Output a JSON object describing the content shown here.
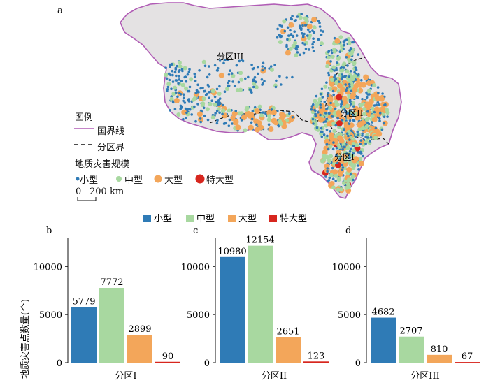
{
  "panel_letters": {
    "a": "a",
    "b": "b",
    "c": "c",
    "d": "d"
  },
  "map": {
    "zone_labels": {
      "zone3": "分区III",
      "zone2": "分区II",
      "zone1": "分区I"
    },
    "legend": {
      "title": "图例",
      "boundary": "国界线",
      "zone_boundary": "分区界",
      "scale_title": "地质灾害规模",
      "sizes": [
        "小型",
        "中型",
        "大型",
        "特大型"
      ],
      "scalebar_0": "0",
      "scalebar_label": "200 km"
    },
    "colors": {
      "small": "#2f7bb6",
      "medium": "#a8d8a0",
      "large": "#f3a65a",
      "xlarge": "#d7261e",
      "border": "#b05cb5",
      "land": "#e4e2e3"
    }
  },
  "chart_legend": [
    "小型",
    "中型",
    "大型",
    "特大型"
  ],
  "chart_data": [
    {
      "type": "bar",
      "panel": "b",
      "categories": [
        "小型",
        "中型",
        "大型",
        "特大型"
      ],
      "values": [
        5779,
        7772,
        2899,
        90
      ],
      "xlabel": "分区I",
      "ylabel": "地质灾害点数量(个)",
      "yticks": [
        "0",
        "5000",
        "10000"
      ],
      "ylim": [
        0,
        13000
      ],
      "colors": [
        "#2f7bb6",
        "#a8d8a0",
        "#f3a65a",
        "#d7261e"
      ]
    },
    {
      "type": "bar",
      "panel": "c",
      "categories": [
        "小型",
        "中型",
        "大型",
        "特大型"
      ],
      "values": [
        10980,
        12154,
        2651,
        123
      ],
      "xlabel": "分区II",
      "ylabel": "",
      "yticks": [
        "0",
        "5000",
        "10000"
      ],
      "ylim": [
        0,
        13000
      ],
      "colors": [
        "#2f7bb6",
        "#a8d8a0",
        "#f3a65a",
        "#d7261e"
      ]
    },
    {
      "type": "bar",
      "panel": "d",
      "categories": [
        "小型",
        "中型",
        "大型",
        "特大型"
      ],
      "values": [
        4682,
        2707,
        810,
        67
      ],
      "xlabel": "分区III",
      "ylabel": "",
      "yticks": [
        "0",
        "5000",
        "10000"
      ],
      "ylim": [
        0,
        13000
      ],
      "colors": [
        "#2f7bb6",
        "#a8d8a0",
        "#f3a65a",
        "#d7261e"
      ]
    }
  ]
}
